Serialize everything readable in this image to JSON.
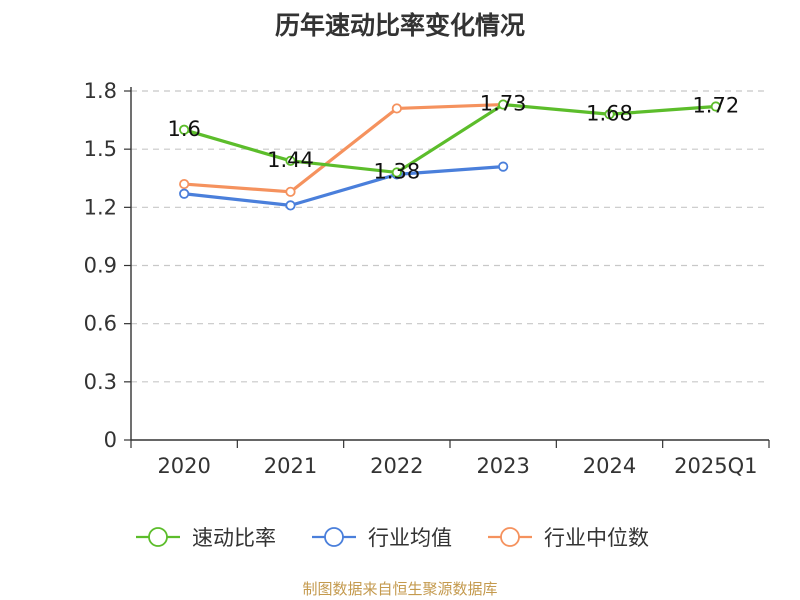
{
  "title": "历年速动比率变化情况",
  "source": "制图数据来自恒生聚源数据库",
  "chart_data": {
    "type": "line",
    "categories": [
      "2020",
      "2021",
      "2022",
      "2023",
      "2024",
      "2025Q1"
    ],
    "ylim": [
      0,
      1.8
    ],
    "yticks": [
      "0",
      "0.3",
      "0.6",
      "0.9",
      "1.2",
      "1.5",
      "1.8"
    ],
    "grid": true,
    "legend_position": "bottom",
    "series": [
      {
        "name": "速动比率",
        "color": "#5cbd2b",
        "values": [
          1.6,
          1.44,
          1.38,
          1.73,
          1.68,
          1.72
        ],
        "labels": [
          "1.6",
          "1.44",
          "1.38",
          "1.73",
          "1.68",
          "1.72"
        ],
        "show_labels": true
      },
      {
        "name": "行业均值",
        "color": "#4a7fdb",
        "values": [
          1.27,
          1.21,
          1.37,
          1.41,
          null,
          null
        ],
        "show_labels": false
      },
      {
        "name": "行业中位数",
        "color": "#f5925e",
        "values": [
          1.32,
          1.28,
          1.71,
          1.73,
          null,
          null
        ],
        "show_labels": false
      }
    ]
  }
}
